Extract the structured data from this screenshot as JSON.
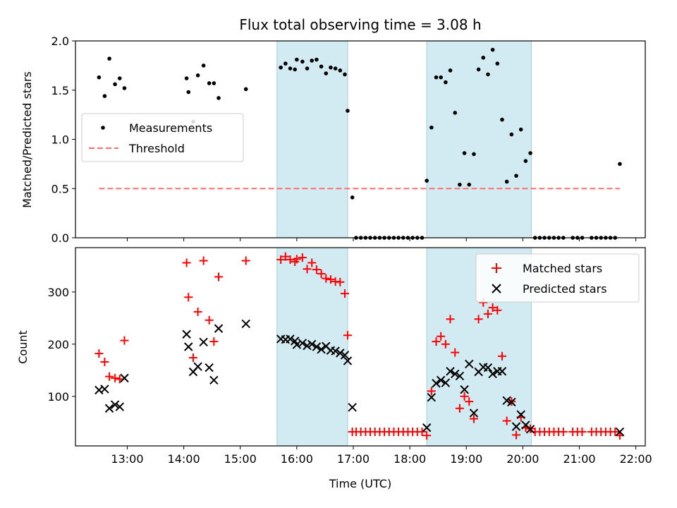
{
  "colors": {
    "shade": "#add8e6",
    "measurement": "#000000",
    "threshold": "#ff6e6e",
    "matched": "#ff0000",
    "predicted": "#000000"
  },
  "chart_data": [
    {
      "type": "scatter",
      "title": "Flux total observing time = 3.08 h",
      "xlabel": "",
      "ylabel": "Matched/Predicted stars",
      "xlim": [
        "12:05",
        "22:10"
      ],
      "ylim": [
        0,
        2.0
      ],
      "yticks": [
        "0.0",
        "0.5",
        "1.0",
        "1.5",
        "2.0"
      ],
      "shaded_intervals": [
        [
          "15:39",
          "16:54"
        ],
        [
          "18:18",
          "20:09"
        ]
      ],
      "legend": {
        "placement": "center-left",
        "entries": [
          "Measurements",
          "Threshold"
        ]
      },
      "series": [
        {
          "name": "Measurements",
          "marker": "dot",
          "points": [
            [
              "12:30",
              1.63
            ],
            [
              "12:36",
              1.44
            ],
            [
              "12:41",
              1.82
            ],
            [
              "12:47",
              1.56
            ],
            [
              "12:52",
              1.62
            ],
            [
              "12:57",
              1.52
            ],
            [
              "14:03",
              1.62
            ],
            [
              "14:05",
              1.48
            ],
            [
              "14:10",
              1.18
            ],
            [
              "14:15",
              1.65
            ],
            [
              "14:21",
              1.75
            ],
            [
              "14:27",
              1.57
            ],
            [
              "14:32",
              1.57
            ],
            [
              "14:37",
              1.42
            ],
            [
              "15:06",
              1.51
            ],
            [
              "15:43",
              1.73
            ],
            [
              "15:48",
              1.77
            ],
            [
              "15:53",
              1.72
            ],
            [
              "15:58",
              1.71
            ],
            [
              "16:00",
              1.81
            ],
            [
              "16:06",
              1.79
            ],
            [
              "16:11",
              1.72
            ],
            [
              "16:16",
              1.8
            ],
            [
              "16:21",
              1.81
            ],
            [
              "16:26",
              1.74
            ],
            [
              "16:31",
              1.67
            ],
            [
              "16:36",
              1.73
            ],
            [
              "16:41",
              1.72
            ],
            [
              "16:46",
              1.7
            ],
            [
              "16:51",
              1.66
            ],
            [
              "16:54",
              1.29
            ],
            [
              "16:59",
              0.41
            ],
            [
              "17:03",
              0
            ],
            [
              "17:08",
              0
            ],
            [
              "17:13",
              0
            ],
            [
              "17:18",
              0
            ],
            [
              "17:23",
              0
            ],
            [
              "17:28",
              0
            ],
            [
              "17:33",
              0
            ],
            [
              "17:38",
              0
            ],
            [
              "17:43",
              0
            ],
            [
              "17:48",
              0
            ],
            [
              "17:53",
              0
            ],
            [
              "17:58",
              0
            ],
            [
              "18:03",
              0
            ],
            [
              "18:08",
              0
            ],
            [
              "18:13",
              0
            ],
            [
              "18:18",
              0.58
            ],
            [
              "18:23",
              1.12
            ],
            [
              "18:28",
              1.63
            ],
            [
              "18:33",
              1.63
            ],
            [
              "18:38",
              1.58
            ],
            [
              "18:43",
              1.7
            ],
            [
              "18:48",
              1.27
            ],
            [
              "18:53",
              0.54
            ],
            [
              "18:58",
              0.86
            ],
            [
              "19:03",
              0.54
            ],
            [
              "19:08",
              0.85
            ],
            [
              "19:13",
              1.71
            ],
            [
              "19:18",
              1.83
            ],
            [
              "19:23",
              1.66
            ],
            [
              "19:28",
              1.91
            ],
            [
              "19:33",
              1.77
            ],
            [
              "19:38",
              1.2
            ],
            [
              "19:43",
              0.57
            ],
            [
              "19:48",
              1.05
            ],
            [
              "19:53",
              0.63
            ],
            [
              "19:58",
              1.1
            ],
            [
              "20:03",
              0.78
            ],
            [
              "20:08",
              0.86
            ],
            [
              "20:13",
              0
            ],
            [
              "20:18",
              0
            ],
            [
              "20:23",
              0
            ],
            [
              "20:28",
              0
            ],
            [
              "20:33",
              0
            ],
            [
              "20:38",
              0
            ],
            [
              "20:43",
              0
            ],
            [
              "20:53",
              0
            ],
            [
              "20:58",
              0
            ],
            [
              "21:03",
              0
            ],
            [
              "21:13",
              0
            ],
            [
              "21:18",
              0
            ],
            [
              "21:23",
              0
            ],
            [
              "21:28",
              0
            ],
            [
              "21:33",
              0
            ],
            [
              "21:38",
              0
            ],
            [
              "21:43",
              0.75
            ]
          ]
        },
        {
          "name": "Threshold",
          "marker": "dashed-line",
          "points": [
            [
              "12:30",
              0.5
            ],
            [
              "21:43",
              0.5
            ]
          ]
        }
      ]
    },
    {
      "type": "scatter",
      "title": "",
      "xlabel": "Time (UTC)",
      "ylabel": "Count",
      "xlim": [
        "12:05",
        "22:10"
      ],
      "ylim": [
        5,
        385
      ],
      "xticks": [
        "13:00",
        "14:00",
        "15:00",
        "16:00",
        "17:00",
        "18:00",
        "19:00",
        "20:00",
        "21:00",
        "22:00"
      ],
      "yticks": [
        "100",
        "200",
        "300"
      ],
      "shaded_intervals": [
        [
          "15:39",
          "16:54"
        ],
        [
          "18:18",
          "20:09"
        ]
      ],
      "legend": {
        "placement": "top-right",
        "entries": [
          "Matched stars",
          "Predicted stars"
        ]
      },
      "series": [
        {
          "name": "Matched stars",
          "marker": "plus",
          "points": [
            [
              "12:30",
              182
            ],
            [
              "12:36",
              166
            ],
            [
              "12:41",
              138
            ],
            [
              "12:47",
              135
            ],
            [
              "12:52",
              133
            ],
            [
              "12:57",
              207
            ],
            [
              "14:03",
              356
            ],
            [
              "14:05",
              290
            ],
            [
              "14:10",
              174
            ],
            [
              "14:15",
              262
            ],
            [
              "14:21",
              360
            ],
            [
              "14:27",
              246
            ],
            [
              "14:32",
              205
            ],
            [
              "14:37",
              329
            ],
            [
              "15:06",
              360
            ],
            [
              "15:43",
              362
            ],
            [
              "15:48",
              368
            ],
            [
              "15:53",
              362
            ],
            [
              "15:58",
              358
            ],
            [
              "16:00",
              363
            ],
            [
              "16:06",
              366
            ],
            [
              "16:11",
              344
            ],
            [
              "16:16",
              356
            ],
            [
              "16:21",
              343
            ],
            [
              "16:26",
              335
            ],
            [
              "16:31",
              326
            ],
            [
              "16:36",
              324
            ],
            [
              "16:41",
              320
            ],
            [
              "16:46",
              319
            ],
            [
              "16:51",
              297
            ],
            [
              "16:54",
              217
            ],
            [
              "16:59",
              32
            ],
            [
              "17:03",
              32
            ],
            [
              "17:08",
              32
            ],
            [
              "17:13",
              32
            ],
            [
              "17:18",
              32
            ],
            [
              "17:23",
              32
            ],
            [
              "17:28",
              32
            ],
            [
              "17:33",
              32
            ],
            [
              "17:38",
              32
            ],
            [
              "17:43",
              32
            ],
            [
              "17:48",
              32
            ],
            [
              "17:53",
              32
            ],
            [
              "17:58",
              32
            ],
            [
              "18:03",
              32
            ],
            [
              "18:08",
              32
            ],
            [
              "18:13",
              32
            ],
            [
              "18:18",
              25
            ],
            [
              "18:23",
              110
            ],
            [
              "18:28",
              205
            ],
            [
              "18:33",
              215
            ],
            [
              "18:38",
              200
            ],
            [
              "18:43",
              248
            ],
            [
              "18:48",
              184
            ],
            [
              "18:53",
              77
            ],
            [
              "18:58",
              100
            ],
            [
              "19:03",
              90
            ],
            [
              "19:08",
              57
            ],
            [
              "19:13",
              248
            ],
            [
              "19:18",
              280
            ],
            [
              "19:23",
              258
            ],
            [
              "19:28",
              270
            ],
            [
              "19:33",
              265
            ],
            [
              "19:38",
              177
            ],
            [
              "19:43",
              53
            ],
            [
              "19:48",
              90
            ],
            [
              "19:53",
              26
            ],
            [
              "19:58",
              60
            ],
            [
              "20:03",
              40
            ],
            [
              "20:08",
              38
            ],
            [
              "20:13",
              32
            ],
            [
              "20:18",
              32
            ],
            [
              "20:23",
              32
            ],
            [
              "20:28",
              32
            ],
            [
              "20:33",
              32
            ],
            [
              "20:38",
              32
            ],
            [
              "20:43",
              32
            ],
            [
              "20:53",
              32
            ],
            [
              "20:58",
              32
            ],
            [
              "21:03",
              32
            ],
            [
              "21:13",
              32
            ],
            [
              "21:18",
              32
            ],
            [
              "21:23",
              32
            ],
            [
              "21:28",
              32
            ],
            [
              "21:33",
              32
            ],
            [
              "21:38",
              32
            ],
            [
              "21:43",
              25
            ]
          ]
        },
        {
          "name": "Predicted stars",
          "marker": "x",
          "points": [
            [
              "12:30",
              112
            ],
            [
              "12:36",
              114
            ],
            [
              "12:41",
              77
            ],
            [
              "12:47",
              84
            ],
            [
              "12:52",
              80
            ],
            [
              "12:57",
              135
            ],
            [
              "14:03",
              219
            ],
            [
              "14:05",
              195
            ],
            [
              "14:10",
              147
            ],
            [
              "14:15",
              157
            ],
            [
              "14:21",
              204
            ],
            [
              "14:27",
              155
            ],
            [
              "14:32",
              131
            ],
            [
              "14:37",
              230
            ],
            [
              "15:06",
              239
            ],
            [
              "15:43",
              210
            ],
            [
              "15:48",
              209
            ],
            [
              "15:53",
              210
            ],
            [
              "15:58",
              206
            ],
            [
              "16:00",
              199
            ],
            [
              "16:06",
              202
            ],
            [
              "16:11",
              197
            ],
            [
              "16:16",
              200
            ],
            [
              "16:21",
              195
            ],
            [
              "16:26",
              190
            ],
            [
              "16:31",
              196
            ],
            [
              "16:36",
              188
            ],
            [
              "16:41",
              187
            ],
            [
              "16:46",
              183
            ],
            [
              "16:51",
              179
            ],
            [
              "16:54",
              168
            ],
            [
              "16:59",
              79
            ],
            [
              "18:18",
              40
            ],
            [
              "18:23",
              98
            ],
            [
              "18:28",
              125
            ],
            [
              "18:33",
              131
            ],
            [
              "18:38",
              126
            ],
            [
              "18:43",
              148
            ],
            [
              "18:48",
              143
            ],
            [
              "18:53",
              139
            ],
            [
              "18:58",
              113
            ],
            [
              "19:03",
              162
            ],
            [
              "19:08",
              68
            ],
            [
              "19:13",
              147
            ],
            [
              "19:18",
              156
            ],
            [
              "19:23",
              155
            ],
            [
              "19:28",
              143
            ],
            [
              "19:33",
              148
            ],
            [
              "19:38",
              148
            ],
            [
              "19:43",
              92
            ],
            [
              "19:48",
              89
            ],
            [
              "19:53",
              42
            ],
            [
              "19:58",
              65
            ],
            [
              "20:03",
              45
            ],
            [
              "20:08",
              37
            ],
            [
              "21:43",
              32
            ]
          ]
        }
      ]
    }
  ]
}
